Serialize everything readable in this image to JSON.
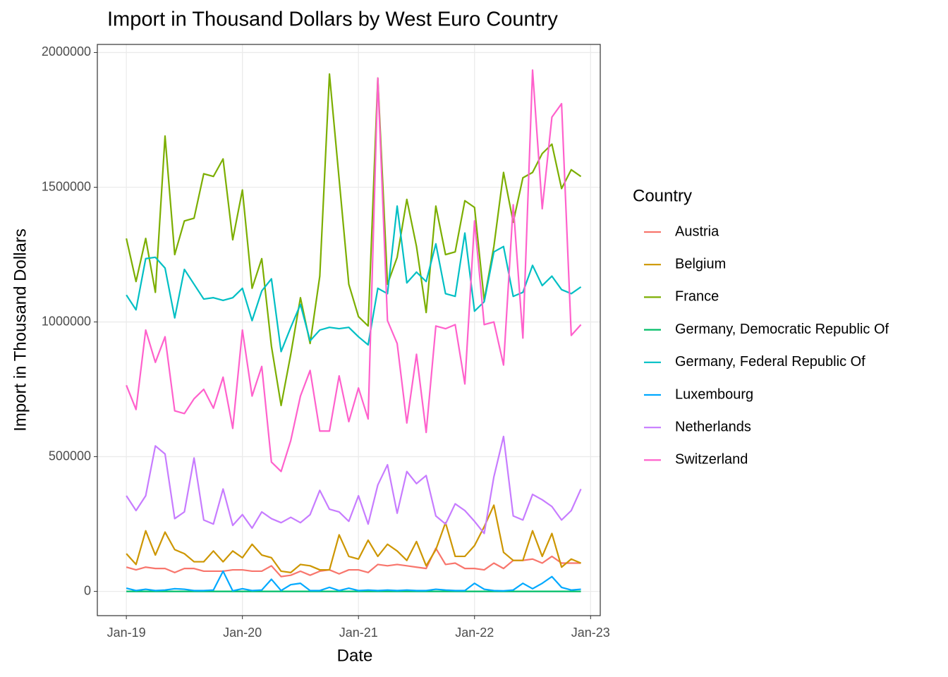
{
  "chart_data": {
    "type": "line",
    "title": "Import in Thousand Dollars by West Euro Country",
    "x_label": "Date",
    "y_label": "Import in Thousand Dollars",
    "legend_title": "Country",
    "legend_position": "right",
    "grid": true,
    "x": [
      "2019-01",
      "2019-02",
      "2019-03",
      "2019-04",
      "2019-05",
      "2019-06",
      "2019-07",
      "2019-08",
      "2019-09",
      "2019-10",
      "2019-11",
      "2019-12",
      "2020-01",
      "2020-02",
      "2020-03",
      "2020-04",
      "2020-05",
      "2020-06",
      "2020-07",
      "2020-08",
      "2020-09",
      "2020-10",
      "2020-11",
      "2020-12",
      "2021-01",
      "2021-02",
      "2021-03",
      "2021-04",
      "2021-05",
      "2021-06",
      "2021-07",
      "2021-08",
      "2021-09",
      "2021-10",
      "2021-11",
      "2021-12",
      "2022-01",
      "2022-02",
      "2022-03",
      "2022-04",
      "2022-05",
      "2022-06",
      "2022-07",
      "2022-08",
      "2022-09",
      "2022-10",
      "2022-11",
      "2022-12"
    ],
    "xlim": [
      "2018-10",
      "2023-02"
    ],
    "xticks": [
      {
        "value": "2019-01",
        "label": "Jan-19"
      },
      {
        "value": "2020-01",
        "label": "Jan-20"
      },
      {
        "value": "2021-01",
        "label": "Jan-21"
      },
      {
        "value": "2022-01",
        "label": "Jan-22"
      },
      {
        "value": "2023-01",
        "label": "Jan-23"
      }
    ],
    "ylim": [
      -90000,
      2030000
    ],
    "yticks": [
      0,
      500000,
      1000000,
      1500000,
      2000000
    ],
    "series": [
      {
        "name": "Austria",
        "color": "#F8766D",
        "values": [
          90000,
          80000,
          90000,
          85000,
          85000,
          70000,
          85000,
          85000,
          75000,
          75000,
          75000,
          80000,
          80000,
          75000,
          75000,
          95000,
          55000,
          60000,
          75000,
          60000,
          75000,
          80000,
          65000,
          80000,
          80000,
          70000,
          100000,
          95000,
          100000,
          95000,
          90000,
          85000,
          160000,
          100000,
          105000,
          85000,
          85000,
          80000,
          105000,
          85000,
          115000,
          115000,
          120000,
          105000,
          130000,
          105000,
          105000,
          105000
        ]
      },
      {
        "name": "Belgium",
        "color": "#CD9600",
        "values": [
          140000,
          100000,
          225000,
          135000,
          220000,
          155000,
          140000,
          110000,
          110000,
          150000,
          110000,
          150000,
          125000,
          175000,
          135000,
          125000,
          75000,
          70000,
          100000,
          95000,
          80000,
          80000,
          210000,
          130000,
          120000,
          190000,
          130000,
          175000,
          150000,
          115000,
          185000,
          95000,
          155000,
          255000,
          130000,
          130000,
          170000,
          240000,
          320000,
          145000,
          115000,
          115000,
          225000,
          130000,
          215000,
          90000,
          120000,
          105000
        ]
      },
      {
        "name": "France",
        "color": "#7CAE00",
        "values": [
          1310000,
          1150000,
          1310000,
          1110000,
          1690000,
          1250000,
          1375000,
          1385000,
          1550000,
          1540000,
          1605000,
          1305000,
          1490000,
          1125000,
          1235000,
          910000,
          690000,
          880000,
          1090000,
          920000,
          1170000,
          1920000,
          1530000,
          1140000,
          1020000,
          985000,
          1905000,
          1140000,
          1240000,
          1455000,
          1280000,
          1035000,
          1430000,
          1250000,
          1260000,
          1450000,
          1425000,
          1080000,
          1280000,
          1555000,
          1370000,
          1535000,
          1555000,
          1625000,
          1660000,
          1495000,
          1565000,
          1540000
        ]
      },
      {
        "name": "Germany, Democratic Republic Of",
        "color": "#00BE67",
        "values": [
          0,
          0,
          0,
          0,
          0,
          0,
          0,
          0,
          0,
          0,
          0,
          0,
          0,
          0,
          0,
          0,
          0,
          0,
          0,
          0,
          0,
          0,
          0,
          0,
          0,
          0,
          0,
          0,
          0,
          0,
          0,
          0,
          0,
          0,
          0,
          0,
          0,
          0,
          0,
          0,
          0,
          0,
          0,
          0,
          0,
          0,
          0,
          0
        ]
      },
      {
        "name": "Germany, Federal Republic Of",
        "color": "#00BFC4",
        "values": [
          1100000,
          1045000,
          1235000,
          1240000,
          1200000,
          1015000,
          1195000,
          1140000,
          1085000,
          1090000,
          1080000,
          1090000,
          1125000,
          1005000,
          1115000,
          1160000,
          890000,
          980000,
          1065000,
          930000,
          970000,
          980000,
          975000,
          980000,
          945000,
          915000,
          1125000,
          1105000,
          1430000,
          1145000,
          1185000,
          1150000,
          1290000,
          1105000,
          1095000,
          1330000,
          1040000,
          1075000,
          1260000,
          1280000,
          1095000,
          1110000,
          1210000,
          1135000,
          1170000,
          1120000,
          1105000,
          1130000
        ]
      },
      {
        "name": "Luxembourg",
        "color": "#00A9FF",
        "values": [
          12000,
          3000,
          8000,
          3000,
          5000,
          10000,
          8000,
          3000,
          3000,
          5000,
          75000,
          2000,
          10000,
          3000,
          5000,
          45000,
          3000,
          25000,
          30000,
          3000,
          3000,
          15000,
          3000,
          12000,
          3000,
          5000,
          3000,
          5000,
          3000,
          5000,
          3000,
          3000,
          8000,
          5000,
          3000,
          3000,
          30000,
          8000,
          3000,
          2000,
          5000,
          30000,
          10000,
          30000,
          55000,
          15000,
          5000,
          8000
        ]
      },
      {
        "name": "Netherlands",
        "color": "#C77CFF",
        "values": [
          355000,
          300000,
          355000,
          540000,
          510000,
          270000,
          295000,
          495000,
          265000,
          250000,
          380000,
          245000,
          285000,
          235000,
          295000,
          270000,
          255000,
          275000,
          255000,
          285000,
          375000,
          305000,
          295000,
          260000,
          355000,
          250000,
          395000,
          470000,
          290000,
          445000,
          400000,
          430000,
          280000,
          250000,
          325000,
          300000,
          260000,
          215000,
          425000,
          575000,
          280000,
          265000,
          360000,
          340000,
          315000,
          265000,
          300000,
          380000
        ]
      },
      {
        "name": "Switzerland",
        "color": "#FF61CC",
        "values": [
          765000,
          675000,
          970000,
          850000,
          945000,
          670000,
          660000,
          715000,
          750000,
          680000,
          795000,
          605000,
          970000,
          725000,
          835000,
          480000,
          445000,
          560000,
          725000,
          820000,
          595000,
          595000,
          800000,
          630000,
          755000,
          640000,
          1905000,
          1005000,
          920000,
          625000,
          880000,
          590000,
          985000,
          975000,
          990000,
          770000,
          1375000,
          990000,
          1000000,
          840000,
          1435000,
          940000,
          1935000,
          1420000,
          1760000,
          1810000,
          950000,
          990000
        ]
      }
    ]
  }
}
